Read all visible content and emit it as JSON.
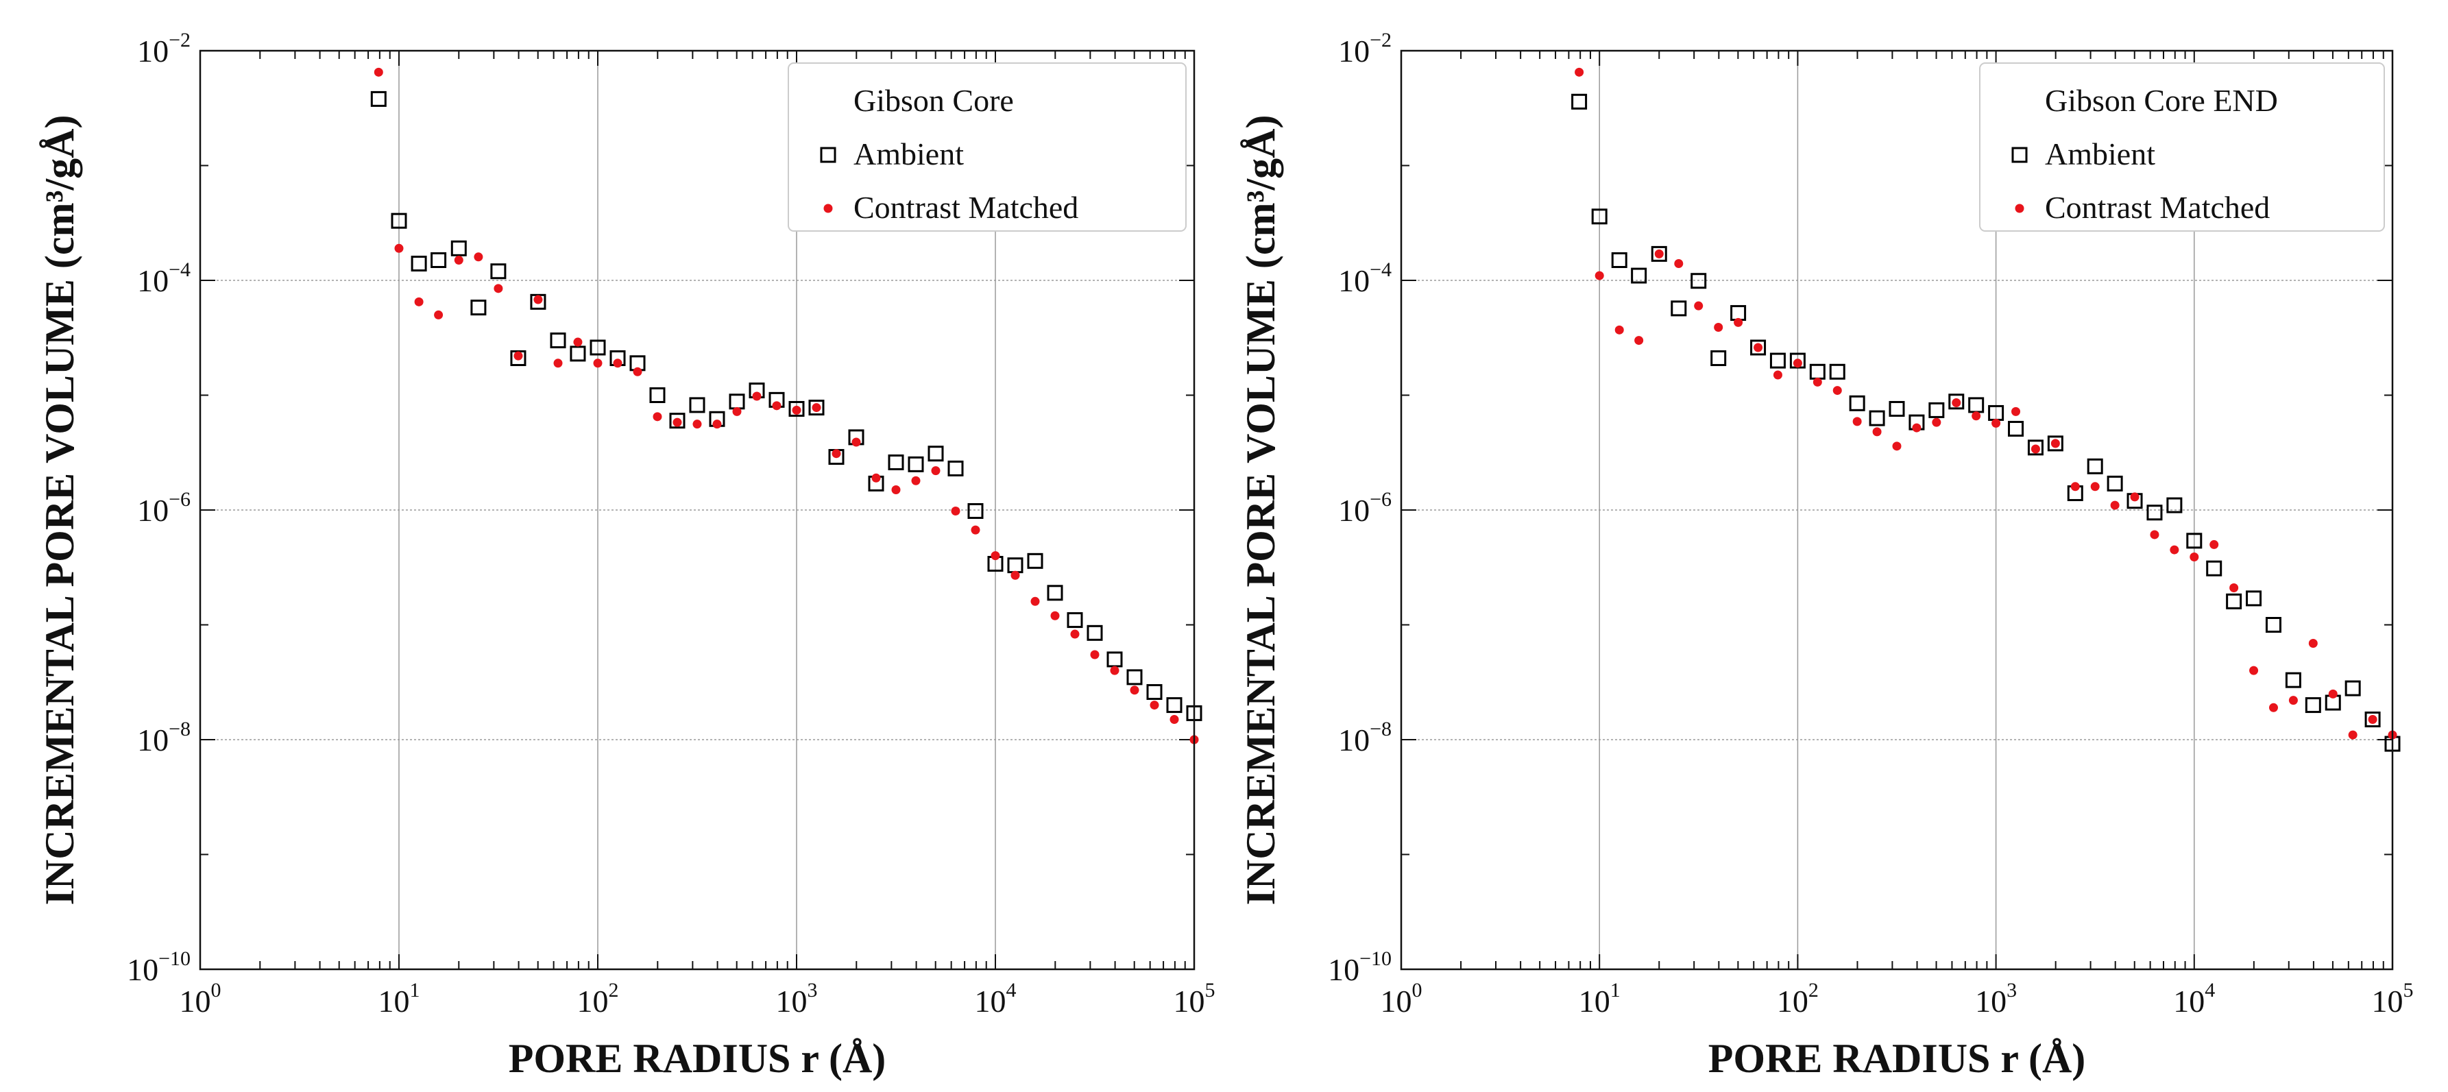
{
  "chart_data": [
    {
      "type": "scatter",
      "title": "Gibson Core",
      "xlabel": "PORE RADIUS r (Å)",
      "ylabel": "INCREMENTAL PORE VOLUME (cm³/gÅ)",
      "xscale": "log",
      "yscale": "log",
      "xlim": [
        1,
        100000
      ],
      "ylim": [
        1e-10,
        0.01
      ],
      "grid": true,
      "legend_position": "top-right",
      "x_ticks": [
        "10^0",
        "10^1",
        "10^2",
        "10^3",
        "10^4",
        "10^5"
      ],
      "y_ticks": [
        "10^-10",
        "10^-8",
        "10^-6",
        "10^-4",
        "10^-2"
      ],
      "series": [
        {
          "name": "Ambient",
          "marker": "open-square",
          "color": "#000000",
          "x": [
            7.9,
            10,
            12.6,
            15.8,
            20,
            25.1,
            31.6,
            39.8,
            50.1,
            63.1,
            79.4,
            100,
            125.9,
            158.5,
            199.5,
            251.2,
            316.2,
            398.1,
            501.2,
            631,
            794.3,
            1000,
            1258.9,
            1584.9,
            1995.3,
            2511.9,
            3162.3,
            3981.1,
            5011.9,
            6309.6,
            7943.3,
            10000,
            12589,
            15849,
            19953,
            25119,
            31623,
            39811,
            50119,
            63096,
            79433,
            100000
          ],
          "y": [
            0.0038,
            0.00033,
            0.00014,
            0.00015,
            0.00019,
            5.8e-05,
            0.00012,
            2.1e-05,
            6.5e-05,
            3e-05,
            2.3e-05,
            2.6e-05,
            2.1e-05,
            1.9e-05,
            1e-05,
            6e-06,
            8.2e-06,
            6.2e-06,
            8.8e-06,
            1.1e-05,
            9.1e-06,
            7.6e-06,
            7.8e-06,
            2.9e-06,
            4.3e-06,
            1.7e-06,
            2.6e-06,
            2.5e-06,
            3.1e-06,
            2.3e-06,
            9.8e-07,
            3.4e-07,
            3.3e-07,
            3.6e-07,
            1.9e-07,
            1.1e-07,
            8.5e-08,
            5e-08,
            3.5e-08,
            2.6e-08,
            2e-08,
            1.7e-08
          ]
        },
        {
          "name": "Contrast Matched",
          "marker": "dot",
          "color": "#e8141b",
          "x": [
            7.9,
            10,
            12.6,
            15.8,
            20,
            25.1,
            31.6,
            39.8,
            50.1,
            63.1,
            79.4,
            100,
            125.9,
            158.5,
            199.5,
            251.2,
            316.2,
            398.1,
            501.2,
            631,
            794.3,
            1000,
            1258.9,
            1584.9,
            1995.3,
            2511.9,
            3162.3,
            3981.1,
            5011.9,
            6309.6,
            7943.3,
            10000,
            12589,
            15849,
            19953,
            25119,
            31623,
            39811,
            50119,
            63096,
            79433,
            100000
          ],
          "y": [
            0.0065,
            0.00019,
            6.5e-05,
            5e-05,
            0.00015,
            0.00016,
            8.5e-05,
            2.2e-05,
            6.8e-05,
            1.9e-05,
            2.9e-05,
            1.9e-05,
            1.9e-05,
            1.6e-05,
            6.5e-06,
            5.8e-06,
            5.6e-06,
            5.6e-06,
            7.2e-06,
            9.8e-06,
            8.1e-06,
            7.4e-06,
            7.8e-06,
            3.1e-06,
            3.9e-06,
            1.9e-06,
            1.5e-06,
            1.8e-06,
            2.2e-06,
            9.8e-07,
            6.7e-07,
            4e-07,
            2.7e-07,
            1.6e-07,
            1.2e-07,
            8.3e-08,
            5.5e-08,
            4e-08,
            2.7e-08,
            2e-08,
            1.5e-08,
            1e-08
          ]
        }
      ]
    },
    {
      "type": "scatter",
      "title": "Gibson Core END",
      "xlabel": "PORE RADIUS r (Å)",
      "ylabel": "INCREMENTAL PORE VOLUME (cm³/gÅ)",
      "xscale": "log",
      "yscale": "log",
      "xlim": [
        1,
        100000
      ],
      "ylim": [
        1e-10,
        0.01
      ],
      "grid": true,
      "legend_position": "top-right",
      "x_ticks": [
        "10^0",
        "10^1",
        "10^2",
        "10^3",
        "10^4",
        "10^5"
      ],
      "y_ticks": [
        "10^-10",
        "10^-8",
        "10^-6",
        "10^-4",
        "10^-2"
      ],
      "series": [
        {
          "name": "Ambient",
          "marker": "open-square",
          "color": "#000000",
          "x": [
            7.9,
            10,
            12.6,
            15.8,
            20,
            25.1,
            31.6,
            39.8,
            50.1,
            63.1,
            79.4,
            100,
            125.9,
            158.5,
            199.5,
            251.2,
            316.2,
            398.1,
            501.2,
            631,
            794.3,
            1000,
            1258.9,
            1584.9,
            1995.3,
            2511.9,
            3162.3,
            3981.1,
            5011.9,
            6309.6,
            7943.3,
            10000,
            12589,
            15849,
            19953,
            25119,
            31623,
            39811,
            50119,
            63096,
            79433,
            100000
          ],
          "y": [
            0.0036,
            0.00036,
            0.00015,
            0.00011,
            0.00017,
            5.7e-05,
            9.9e-05,
            2.1e-05,
            5.2e-05,
            2.6e-05,
            2e-05,
            2e-05,
            1.6e-05,
            1.6e-05,
            8.5e-06,
            6.3e-06,
            7.6e-06,
            5.8e-06,
            7.4e-06,
            8.8e-06,
            8.2e-06,
            7e-06,
            5.1e-06,
            3.5e-06,
            3.8e-06,
            1.4e-06,
            2.4e-06,
            1.7e-06,
            1.2e-06,
            9.5e-07,
            1.1e-06,
            5.4e-07,
            3.1e-07,
            1.6e-07,
            1.7e-07,
            1e-07,
            3.3e-08,
            2e-08,
            2.1e-08,
            2.8e-08,
            1.5e-08,
            9.2e-09
          ]
        },
        {
          "name": "Contrast Matched",
          "marker": "dot",
          "color": "#e8141b",
          "x": [
            7.9,
            10,
            12.6,
            15.8,
            20,
            25.1,
            31.6,
            39.8,
            50.1,
            63.1,
            79.4,
            100,
            125.9,
            158.5,
            199.5,
            251.2,
            316.2,
            398.1,
            501.2,
            631,
            794.3,
            1000,
            1258.9,
            1584.9,
            1995.3,
            2511.9,
            3162.3,
            3981.1,
            5011.9,
            6309.6,
            7943.3,
            10000,
            12589,
            15849,
            19953,
            25119,
            31623,
            39811,
            50119,
            63096,
            79433,
            100000
          ],
          "y": [
            0.0065,
            0.00011,
            3.7e-05,
            3e-05,
            0.00017,
            0.00014,
            6e-05,
            3.9e-05,
            4.3e-05,
            2.6e-05,
            1.5e-05,
            1.9e-05,
            1.3e-05,
            1.1e-05,
            5.9e-06,
            4.8e-06,
            3.6e-06,
            5.2e-06,
            5.8e-06,
            8.6e-06,
            6.6e-06,
            5.7e-06,
            7.2e-06,
            3.4e-06,
            3.8e-06,
            1.6e-06,
            1.6e-06,
            1.1e-06,
            1.3e-06,
            6.1e-07,
            4.5e-07,
            3.9e-07,
            5e-07,
            2.1e-07,
            4e-08,
            1.9e-08,
            2.2e-08,
            6.9e-08,
            2.5e-08,
            1.1e-08,
            1.5e-08,
            1.1e-08
          ]
        }
      ]
    }
  ]
}
